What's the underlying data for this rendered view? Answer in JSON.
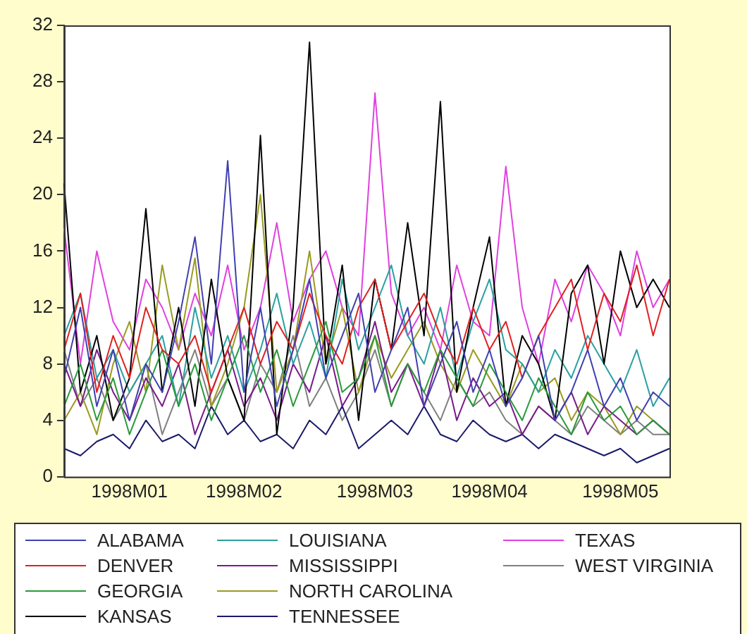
{
  "chart_data": {
    "type": "line",
    "categories": [
      null,
      null,
      null,
      null,
      "1998M01",
      null,
      null,
      null,
      null,
      null,
      null,
      "1998M02",
      null,
      null,
      null,
      null,
      null,
      null,
      null,
      "1998M03",
      null,
      null,
      null,
      null,
      null,
      null,
      "1998M04",
      null,
      null,
      null,
      null,
      null,
      null,
      null,
      "1998M05",
      null,
      null,
      null
    ],
    "ylim": [
      0,
      32
    ],
    "yticks": [
      0,
      4,
      8,
      12,
      16,
      20,
      24,
      28,
      32
    ],
    "grid": false,
    "legend": "bottom",
    "marker": "none",
    "series": [
      {
        "name": "ALABAMA",
        "color": "#4040b0",
        "values": [
          7,
          12,
          5,
          9,
          4,
          8,
          6,
          11,
          17,
          8,
          22.4,
          6,
          12,
          5,
          9,
          14,
          7,
          10,
          13,
          6,
          9,
          12,
          5,
          8,
          11,
          6,
          9,
          5,
          7,
          10,
          4,
          6,
          9,
          5,
          7,
          4,
          6,
          5
        ]
      },
      {
        "name": "DENVER",
        "color": "#e02020",
        "values": [
          9,
          13,
          6,
          10,
          7,
          12,
          9,
          8,
          10,
          6,
          9,
          12,
          8,
          11,
          9,
          13,
          10,
          8,
          12,
          14,
          9,
          11,
          13,
          10,
          8,
          12,
          9,
          11,
          7,
          10,
          12,
          14,
          9,
          13,
          11,
          15,
          10,
          14
        ]
      },
      {
        "name": "GEORGIA",
        "color": "#2a9a3a",
        "values": [
          5,
          8,
          4,
          7,
          3,
          6,
          9,
          5,
          8,
          4,
          7,
          10,
          6,
          9,
          5,
          8,
          11,
          6,
          7,
          10,
          5,
          8,
          6,
          9,
          7,
          5,
          8,
          6,
          4,
          7,
          5,
          3,
          6,
          4,
          5,
          3,
          4,
          3
        ]
      },
      {
        "name": "KANSAS",
        "color": "#000000",
        "values": [
          20.8,
          6,
          10,
          4,
          7,
          19,
          6,
          12,
          5,
          14,
          7,
          4,
          24.2,
          3,
          12,
          30.8,
          8,
          15,
          4,
          14,
          9,
          18,
          10,
          26.6,
          6,
          12,
          17,
          5,
          10,
          8,
          4,
          13,
          15,
          8,
          16,
          12,
          14,
          12
        ]
      },
      {
        "name": "LOUISIANA",
        "color": "#2aa0a0",
        "values": [
          10,
          13,
          7,
          9,
          6,
          8,
          10,
          5,
          12,
          7,
          10,
          6,
          9,
          13,
          8,
          11,
          7,
          14,
          9,
          12,
          15,
          10,
          8,
          12,
          7,
          11,
          14,
          9,
          8,
          6,
          9,
          7,
          10,
          8,
          6,
          9,
          5,
          7
        ]
      },
      {
        "name": "MISSISSIPPI",
        "color": "#7a1a8a",
        "values": [
          8,
          5,
          9,
          6,
          4,
          7,
          5,
          8,
          3,
          6,
          9,
          5,
          7,
          4,
          8,
          6,
          10,
          5,
          7,
          11,
          6,
          8,
          5,
          9,
          4,
          7,
          5,
          6,
          3,
          5,
          4,
          6,
          3,
          5,
          4,
          3,
          4,
          3
        ]
      },
      {
        "name": "NORTH CAROLINA",
        "color": "#9a9a20",
        "values": [
          4,
          6,
          3,
          8,
          11,
          6,
          15,
          9,
          15.5,
          5,
          8,
          12,
          20,
          6,
          9,
          16,
          8,
          12,
          6,
          10,
          7,
          9,
          11,
          8,
          6,
          9,
          7,
          5,
          8,
          6,
          7,
          4,
          6,
          5,
          3,
          5,
          4,
          3
        ]
      },
      {
        "name": "TENNESSEE",
        "color": "#1a1a6a",
        "values": [
          2,
          1.5,
          2.5,
          3,
          2,
          4,
          2.5,
          3,
          2,
          5,
          3,
          4,
          2.5,
          3,
          2,
          4,
          3,
          5,
          2,
          3,
          4,
          3,
          5,
          3,
          2.5,
          4,
          3,
          2.5,
          3,
          2,
          3,
          2.5,
          2,
          1.5,
          2,
          1,
          1.5,
          2
        ]
      },
      {
        "name": "TEXAS",
        "color": "#e040e0",
        "values": [
          17.6,
          8,
          16,
          11,
          9,
          14,
          12,
          9,
          13,
          10,
          15,
          9,
          12,
          18,
          11,
          14,
          16,
          12,
          10,
          27.2,
          13,
          10,
          12,
          9,
          15,
          11,
          10,
          22,
          12,
          8,
          14,
          11,
          15,
          13,
          10,
          16,
          12,
          14
        ]
      },
      {
        "name": "WEST VIRGINIA",
        "color": "#808080",
        "values": [
          9,
          5,
          7,
          4,
          6,
          8,
          3,
          6,
          9,
          5,
          7,
          4,
          8,
          6,
          10,
          5,
          7,
          4,
          6,
          9,
          5,
          8,
          6,
          4,
          7,
          5,
          6,
          4,
          3,
          5,
          4,
          3,
          5,
          4,
          3,
          4,
          3,
          3
        ]
      }
    ]
  }
}
